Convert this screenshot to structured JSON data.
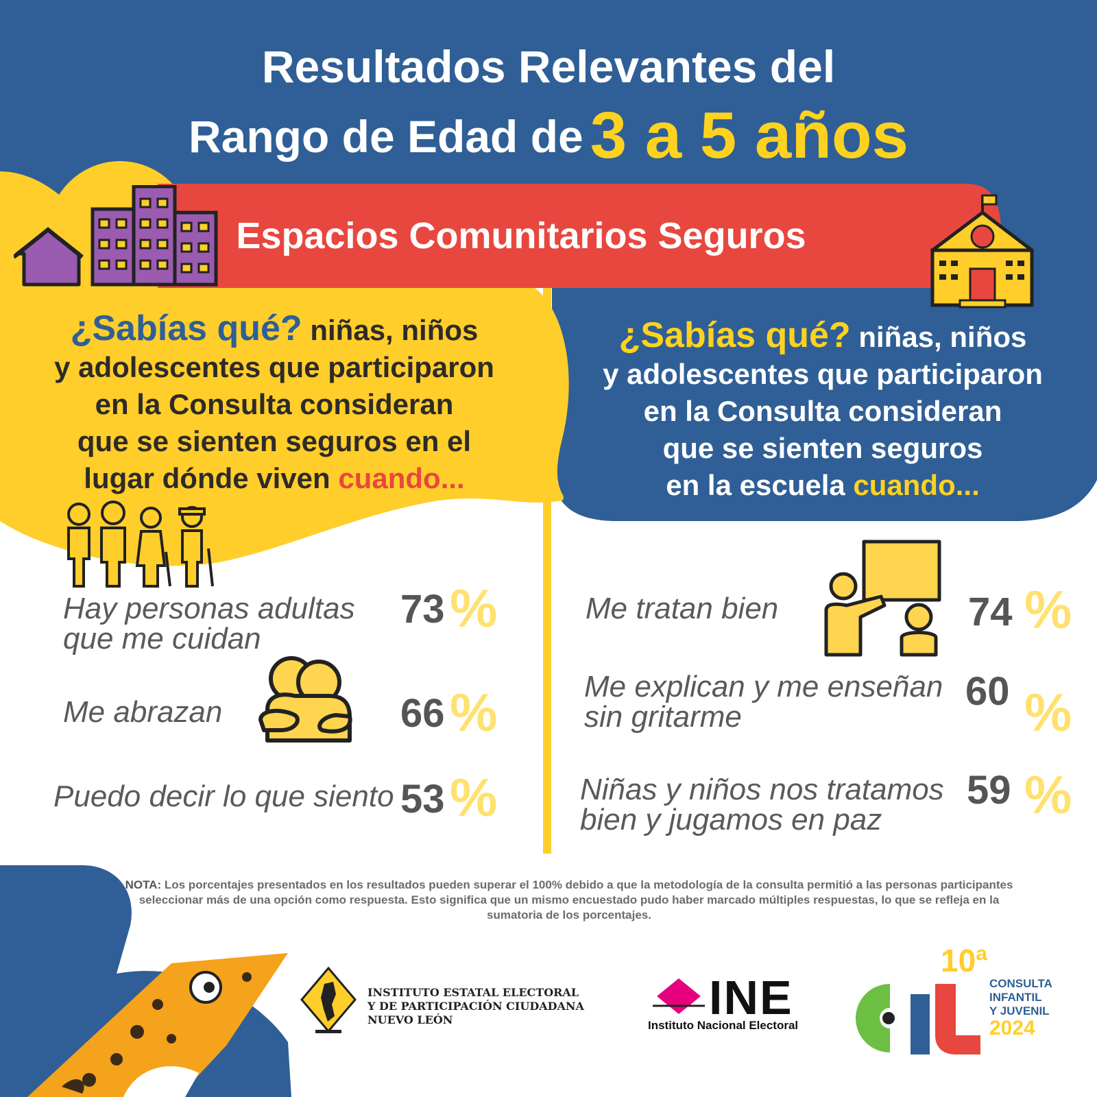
{
  "header": {
    "title_line1": "Resultados Relevantes del",
    "title_line2": "Rango de Edad de",
    "title_highlight": "3 a 5 años"
  },
  "banner": {
    "label": "Espacios Comunitarios Seguros"
  },
  "left_panel": {
    "question_lead": "¿Sabías qué?",
    "question_line1": "niñas, niños",
    "question_line2": "y adolescentes que participaron",
    "question_line3": "en la Consulta consideran",
    "question_line4": "que se sienten seguros en el",
    "question_line5": "lugar dónde viven",
    "question_emph": "cuando...",
    "items": [
      {
        "text1": "Hay personas adultas",
        "text2": "que me cuidan",
        "value": "73",
        "pct": "%"
      },
      {
        "text1": "Me abrazan",
        "text2": "",
        "value": "66",
        "pct": "%"
      },
      {
        "text1": "Puedo decir lo que siento",
        "text2": "",
        "value": "53",
        "pct": "%"
      }
    ]
  },
  "right_panel": {
    "question_lead": "¿Sabías qué?",
    "question_line1": "niñas, niños",
    "question_line2": "y adolescentes que participaron",
    "question_line3": "en la Consulta consideran",
    "question_line4": "que se sienten seguros",
    "question_line5": "en la escuela",
    "question_emph": "cuando...",
    "items": [
      {
        "text1": "Me tratan bien",
        "text2": "",
        "value": "74",
        "pct": "%"
      },
      {
        "text1": "Me explican y me enseñan",
        "text2": "sin gritarme",
        "value": "60",
        "pct": "%"
      },
      {
        "text1": "Niñas y niños nos tratamos",
        "text2": "bien y jugamos en paz",
        "value": "59",
        "pct": "%"
      }
    ]
  },
  "note": {
    "label": "NOTA:",
    "text": "Los porcentajes presentados en los resultados pueden superar el 100% debido a que la metodología de la consulta permitió a las personas participantes seleccionar más de una opción como respuesta. Esto significa que un mismo encuestado pudo haber marcado múltiples respuestas, lo que se refleja en la sumatoria de los porcentajes."
  },
  "footer": {
    "iee_line1": "INSTITUTO ESTATAL ELECTORAL",
    "iee_line2": "Y DE PARTICIPACIÓN CIUDADANA",
    "iee_line3": "NUEVO LEÓN",
    "ine_logo": "INE",
    "ine_name": "Instituto Nacional Electoral",
    "cij_edition": "10ª",
    "cij_letters": "CIJ",
    "cij_line1": "CONSULTA",
    "cij_line2": "INFANTIL",
    "cij_line3": "Y JUVENIL",
    "cij_year": "2024"
  },
  "colors": {
    "blue": "#2F5F96",
    "yellow": "#FFCE2B",
    "red": "#E8473F",
    "purple": "#9B5BB0",
    "pale_yellow": "#FFE170"
  }
}
